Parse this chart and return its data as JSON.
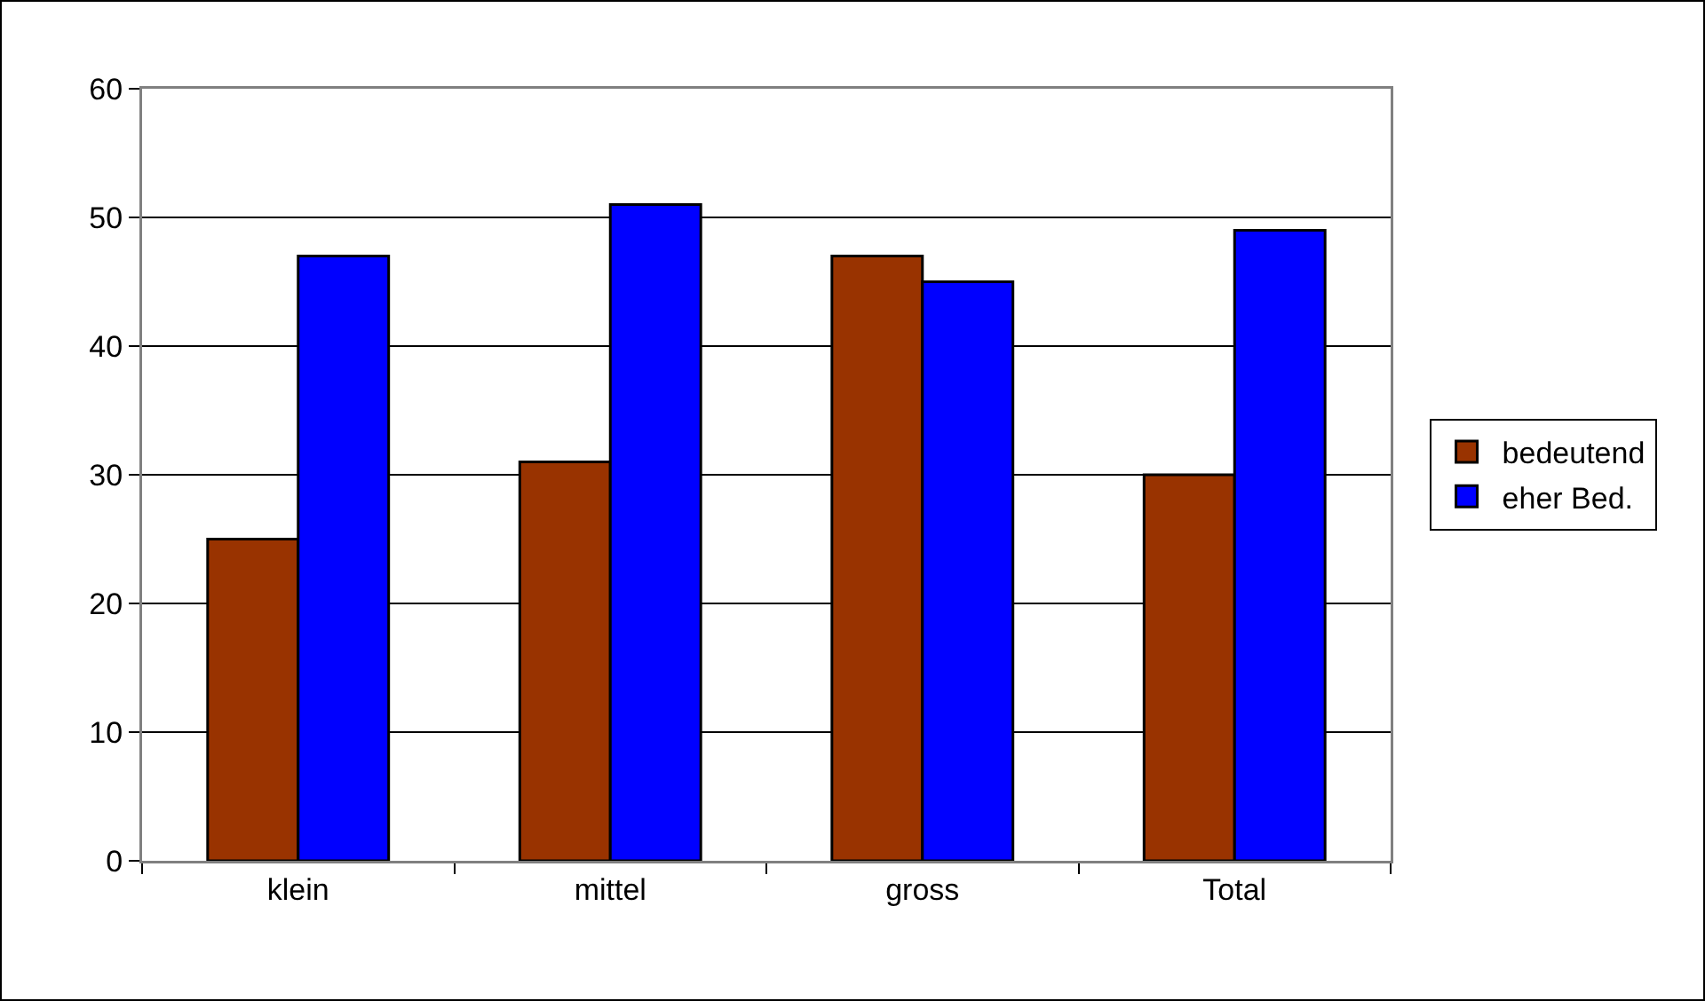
{
  "chart_data": {
    "type": "bar",
    "categories": [
      "klein",
      "mittel",
      "gross",
      "Total"
    ],
    "series": [
      {
        "name": "bedeutend",
        "color": "#993300",
        "values": [
          25,
          31,
          47,
          30
        ]
      },
      {
        "name": "eher Bed.",
        "color": "#0000ff",
        "values": [
          47,
          51,
          45,
          49
        ]
      }
    ],
    "ylim": [
      0,
      60
    ],
    "yticks": [
      0,
      10,
      20,
      30,
      40,
      50,
      60
    ],
    "grid": "y",
    "legend": "right"
  }
}
